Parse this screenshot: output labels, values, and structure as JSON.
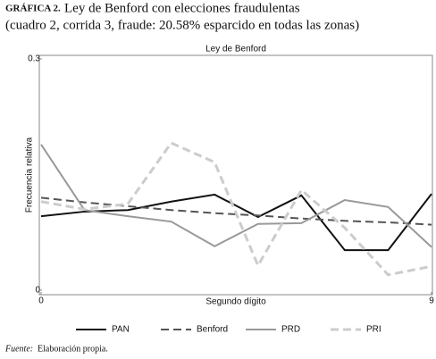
{
  "chart_data": {
    "type": "line",
    "label": "GRÁFICA 2.",
    "title": "Ley de Benford con elecciones fraudulentas",
    "subtitle": "(cuadro 2, corrida 3, fraude: 20.58% esparcido en todas las zonas)",
    "plot_title": "Ley de Benford",
    "ylabel": "Frecuencia relativa",
    "xlabel": "Segundo dígito",
    "x": [
      0,
      1,
      2,
      3,
      4,
      5,
      6,
      7,
      8,
      9
    ],
    "xlim": [
      0,
      9
    ],
    "xticks": [
      0,
      9
    ],
    "ylim": [
      0,
      0.3
    ],
    "yticks": [
      0,
      0.3
    ],
    "series": [
      {
        "name": "PAN",
        "color": "#111111",
        "style": "solid",
        "values": [
          0.096,
          0.102,
          0.104,
          0.115,
          0.124,
          0.095,
          0.123,
          0.052,
          0.052,
          0.125
        ]
      },
      {
        "name": "Benford",
        "color": "#555555",
        "style": "dashed",
        "values": [
          0.12,
          0.114,
          0.109,
          0.104,
          0.1,
          0.097,
          0.093,
          0.09,
          0.088,
          0.085
        ]
      },
      {
        "name": "PRD",
        "color": "#999999",
        "style": "solid",
        "values": [
          0.189,
          0.104,
          0.096,
          0.089,
          0.057,
          0.086,
          0.087,
          0.117,
          0.108,
          0.056
        ]
      },
      {
        "name": "PRI",
        "color": "#cccccc",
        "style": "dashed",
        "values": [
          0.115,
          0.105,
          0.112,
          0.191,
          0.166,
          0.032,
          0.13,
          0.081,
          0.02,
          0.031
        ]
      }
    ],
    "legend": "bottom",
    "source_label": "Fuente:",
    "source": "Elaboración propia."
  }
}
